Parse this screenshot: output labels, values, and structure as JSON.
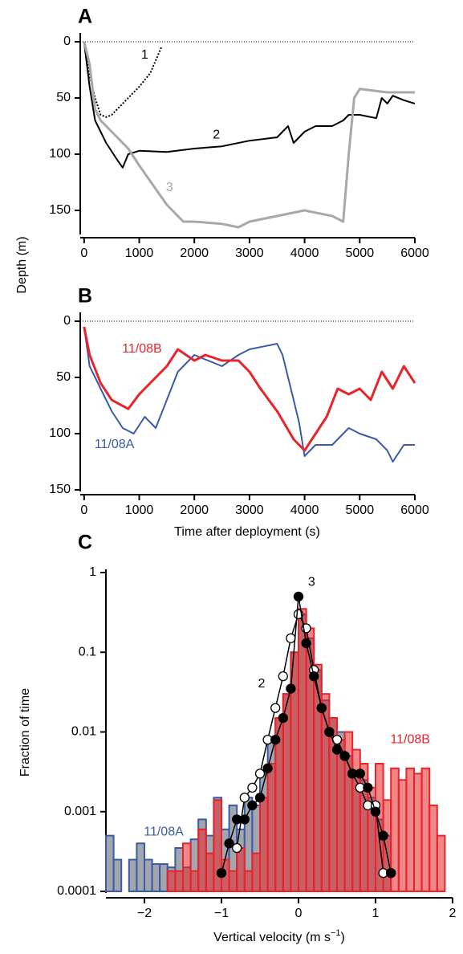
{
  "chart_data": [
    {
      "type": "line",
      "panel": "A",
      "ylabel": "Depth (m)",
      "xlim": [
        -70,
        6000
      ],
      "ylim": [
        -5,
        170
      ],
      "invert_y": true,
      "zero_line": true,
      "xticks": [
        0,
        1000,
        2000,
        3000,
        4000,
        5000,
        6000
      ],
      "yticks": [
        0,
        50,
        100,
        150
      ],
      "series": [
        {
          "name": "1",
          "color": "#000000",
          "dash": "dotted",
          "x": [
            0,
            100,
            200,
            300,
            400,
            500,
            600,
            800,
            1000,
            1200,
            1400
          ],
          "values": [
            0,
            30,
            50,
            65,
            67,
            65,
            60,
            50,
            40,
            28,
            5
          ]
        },
        {
          "name": "2",
          "color": "#000000",
          "dash": "solid",
          "x": [
            0,
            100,
            200,
            400,
            600,
            700,
            800,
            1000,
            1500,
            2000,
            2500,
            3000,
            3500,
            3700,
            3800,
            4000,
            4200,
            4500,
            4700,
            4800,
            5000,
            5300,
            5400,
            5500,
            5600,
            5800,
            6000
          ],
          "values": [
            0,
            40,
            70,
            90,
            105,
            112,
            100,
            97,
            98,
            95,
            93,
            88,
            85,
            75,
            90,
            80,
            75,
            75,
            70,
            65,
            65,
            68,
            50,
            55,
            48,
            52,
            55
          ]
        },
        {
          "name": "3",
          "color": "#a8a8a8",
          "dash": "solid",
          "x": [
            0,
            100,
            200,
            300,
            500,
            800,
            1000,
            1500,
            1800,
            2000,
            2500,
            2800,
            3000,
            3500,
            4000,
            4200,
            4500,
            4700,
            4800,
            4900,
            5000,
            5500,
            6000
          ],
          "values": [
            0,
            20,
            60,
            70,
            80,
            95,
            110,
            145,
            160,
            160,
            162,
            165,
            160,
            155,
            150,
            152,
            155,
            160,
            100,
            50,
            42,
            45,
            45
          ]
        }
      ]
    },
    {
      "type": "line",
      "panel": "B",
      "xlabel": "Time after deployment (s)",
      "xlim": [
        -70,
        6000
      ],
      "ylim": [
        -5,
        150
      ],
      "invert_y": true,
      "zero_line": true,
      "xticks": [
        0,
        1000,
        2000,
        3000,
        4000,
        5000,
        6000
      ],
      "yticks": [
        0,
        50,
        100,
        150
      ],
      "series": [
        {
          "name": "11/08A",
          "color": "#3a5aa8",
          "dash": "solid",
          "x": [
            0,
            100,
            300,
            500,
            700,
            900,
            1100,
            1300,
            1500,
            1700,
            2000,
            2500,
            2800,
            3000,
            3300,
            3500,
            3600,
            3800,
            3900,
            4000,
            4200,
            4500,
            4800,
            5000,
            5300,
            5500,
            5600,
            5800,
            6000
          ],
          "values": [
            5,
            40,
            60,
            80,
            95,
            100,
            85,
            95,
            70,
            45,
            30,
            40,
            30,
            25,
            22,
            20,
            30,
            70,
            90,
            120,
            110,
            110,
            95,
            100,
            105,
            115,
            125,
            110,
            110
          ]
        },
        {
          "name": "11/08B",
          "color": "#e8242a",
          "dash": "solid",
          "x": [
            0,
            100,
            300,
            500,
            800,
            1000,
            1200,
            1400,
            1500,
            1700,
            2000,
            2200,
            2500,
            2800,
            3000,
            3200,
            3500,
            3800,
            4000,
            4200,
            4400,
            4600,
            4800,
            5000,
            5200,
            5400,
            5600,
            5800,
            6000
          ],
          "values": [
            5,
            30,
            55,
            70,
            78,
            65,
            55,
            45,
            40,
            25,
            35,
            30,
            35,
            35,
            45,
            60,
            80,
            105,
            115,
            100,
            85,
            60,
            65,
            60,
            70,
            45,
            60,
            40,
            55
          ]
        }
      ]
    },
    {
      "type": "histogram",
      "panel": "C",
      "xlabel_parts": [
        "Vertical velocity (m s",
        "−1",
        ")"
      ],
      "ylabel": "Fraction of time",
      "log_y": true,
      "xlim": [
        -2.5,
        2.0
      ],
      "ylim": [
        0.0001,
        1
      ],
      "xticks": [
        {
          "value": -2,
          "label": "−2"
        },
        {
          "value": -1,
          "label": "−1"
        },
        0,
        1,
        2
      ],
      "yticks": [
        1,
        0.1,
        0.01,
        0.001,
        0.0001
      ],
      "bins": [
        -2.5,
        -2.4,
        -2.3,
        -2.2,
        -2.1,
        -2.0,
        -1.9,
        -1.8,
        -1.7,
        -1.6,
        -1.5,
        -1.4,
        -1.3,
        -1.2,
        -1.1,
        -1.0,
        -0.9,
        -0.8,
        -0.7,
        -0.6,
        -0.5,
        -0.4,
        -0.3,
        -0.2,
        -0.1,
        0.0,
        0.1,
        0.2,
        0.3,
        0.4,
        0.5,
        0.6,
        0.7,
        0.8,
        0.9,
        1.0,
        1.1,
        1.2,
        1.3,
        1.4,
        1.5,
        1.6,
        1.7,
        1.8,
        1.9
      ],
      "series": [
        {
          "name": "11/08A",
          "color": "#3a5aa8",
          "fill": "#a4a6ae",
          "values": [
            0.0005,
            0.00025,
            null,
            0.00025,
            0.0004,
            0.00025,
            0.00022,
            0.00022,
            0.0002,
            0.00035,
            0.0002,
            0.00045,
            0.0008,
            0.0005,
            0.0015,
            0.0006,
            0.0012,
            0.0006,
            0.0015,
            0.0012,
            0.003,
            0.008,
            0.015,
            0.03,
            0.1,
            0.3,
            0.15,
            0.06,
            0.025,
            0.015,
            0.01,
            0.005,
            0.003,
            0.0025,
            0.0015,
            0.0008,
            0.0005,
            null,
            null,
            null,
            null,
            null,
            null,
            null
          ]
        },
        {
          "name": "11/08B",
          "color": "#e8242a",
          "fill": "#e8242a",
          "values": [
            null,
            null,
            null,
            null,
            null,
            null,
            null,
            null,
            0.00018,
            0.00018,
            0.0004,
            0.00018,
            0.0006,
            0.0003,
            0.0014,
            0.00025,
            0.00018,
            0.00035,
            0.00018,
            0.0003,
            0.0015,
            0.004,
            0.015,
            0.03,
            0.1,
            0.35,
            0.2,
            0.07,
            0.03,
            0.015,
            0.008,
            0.01,
            0.006,
            0.004,
            0.002,
            0.004,
            0.0014,
            0.0035,
            0.0025,
            0.0035,
            0.003,
            0.0035,
            0.0012,
            0.0005
          ]
        }
      ],
      "lines": [
        {
          "name": "2",
          "color": "#000000",
          "marker_fill": "#ffffff",
          "x": [
            -0.8,
            -0.7,
            -0.6,
            -0.5,
            -0.4,
            -0.3,
            -0.2,
            -0.1,
            0.0,
            0.1,
            0.2,
            0.3,
            0.4,
            0.5,
            0.6,
            0.7,
            0.8,
            0.9,
            1.0,
            1.1,
            1.2
          ],
          "values": [
            0.00035,
            0.0015,
            0.002,
            0.003,
            0.008,
            0.02,
            0.05,
            0.15,
            0.3,
            0.2,
            0.06,
            0.02,
            0.01,
            0.008,
            0.005,
            0.003,
            0.002,
            0.0012,
            0.0012,
            0.00017,
            0.00017
          ]
        },
        {
          "name": "3",
          "color": "#000000",
          "marker_fill": "#000000",
          "x": [
            -1.0,
            -0.9,
            -0.8,
            -0.7,
            -0.6,
            -0.5,
            -0.4,
            -0.3,
            -0.2,
            -0.1,
            0.0,
            0.1,
            0.2,
            0.3,
            0.4,
            0.5,
            0.6,
            0.7,
            0.8,
            0.9,
            1.0,
            1.1,
            1.2
          ],
          "values": [
            0.00017,
            0.0004,
            0.0008,
            0.0008,
            0.0012,
            0.0015,
            0.0035,
            0.008,
            0.015,
            0.035,
            0.5,
            0.13,
            0.05,
            0.02,
            0.01,
            0.006,
            0.005,
            0.003,
            0.003,
            0.002,
            0.001,
            0.0005,
            0.00017
          ]
        }
      ]
    }
  ]
}
